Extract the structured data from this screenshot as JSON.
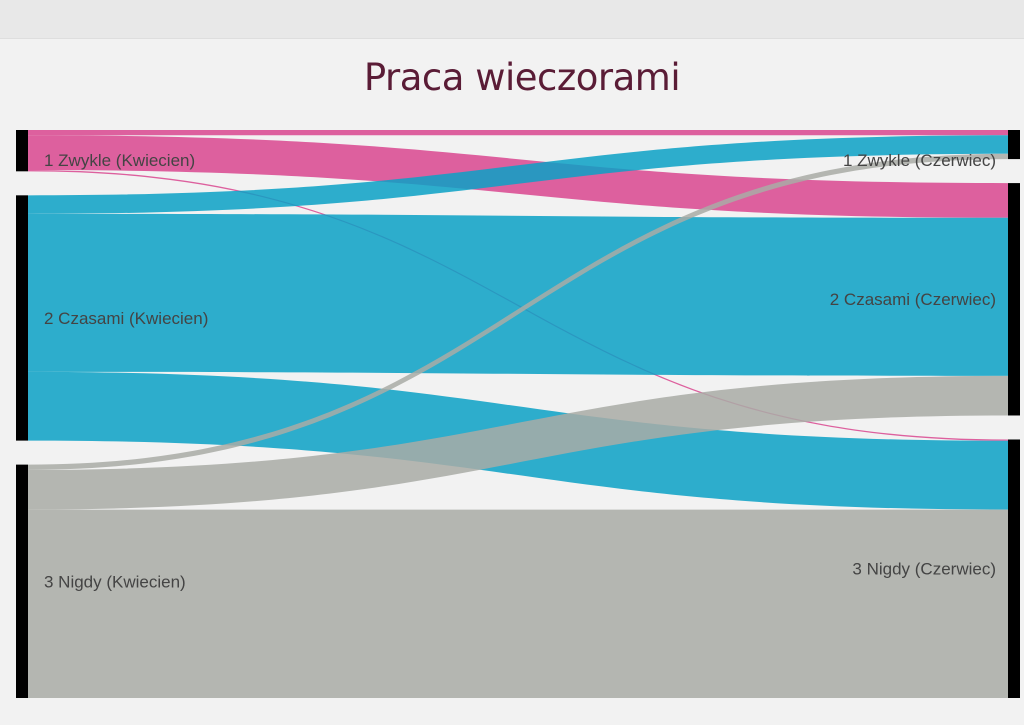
{
  "title": "Praca wieczorami",
  "colors": {
    "zwykle": "#d9468f",
    "czasami": "#0aa1c6",
    "nigdy": "#a9aca6",
    "node": "#000000",
    "background": "#f2f2f2"
  },
  "chart_data": {
    "type": "sankey",
    "title": "Praca wieczorami",
    "nodes": [
      {
        "id": "1 Zwykle (Kwiecien)",
        "column": 0
      },
      {
        "id": "2 Czasami (Kwiecien)",
        "column": 0
      },
      {
        "id": "3 Nigdy (Kwiecien)",
        "column": 0
      },
      {
        "id": "1 Zwykle (Czerwiec)",
        "column": 1
      },
      {
        "id": "2 Czasami (Czerwiec)",
        "column": 1
      },
      {
        "id": "3 Nigdy (Czerwiec)",
        "column": 1
      }
    ],
    "links": [
      {
        "source": "1 Zwykle (Kwiecien)",
        "target": "1 Zwykle (Czerwiec)",
        "value": 1.6,
        "color": "zwykle"
      },
      {
        "source": "1 Zwykle (Kwiecien)",
        "target": "2 Czasami (Czerwiec)",
        "value": 10.5,
        "color": "zwykle"
      },
      {
        "source": "1 Zwykle (Kwiecien)",
        "target": "3 Nigdy (Czerwiec)",
        "value": 0.4,
        "color": "zwykle"
      },
      {
        "source": "2 Czasami (Kwiecien)",
        "target": "1 Zwykle (Czerwiec)",
        "value": 5.6,
        "color": "czasami"
      },
      {
        "source": "2 Czasami (Kwiecien)",
        "target": "2 Czasami (Czerwiec)",
        "value": 47.8,
        "color": "czasami"
      },
      {
        "source": "2 Czasami (Kwiecien)",
        "target": "3 Nigdy (Czerwiec)",
        "value": 20.8,
        "color": "czasami"
      },
      {
        "source": "3 Nigdy (Kwiecien)",
        "target": "1 Zwykle (Czerwiec)",
        "value": 1.6,
        "color": "nigdy"
      },
      {
        "source": "3 Nigdy (Kwiecien)",
        "target": "2 Czasami (Czerwiec)",
        "value": 12.0,
        "color": "nigdy"
      },
      {
        "source": "3 Nigdy (Kwiecien)",
        "target": "3 Nigdy (Czerwiec)",
        "value": 57.0,
        "color": "nigdy"
      }
    ]
  }
}
